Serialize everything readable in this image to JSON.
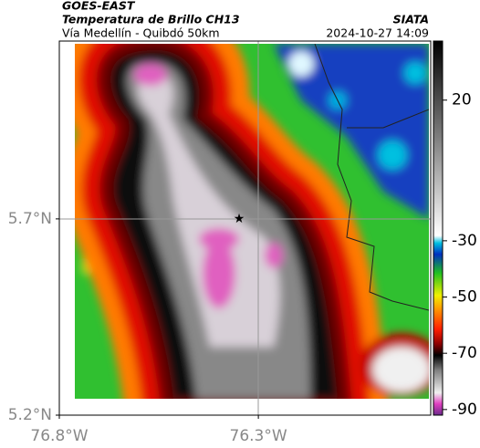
{
  "header": {
    "title": "GOES-EAST",
    "subtitle": "Temperatura de Brillo CH13",
    "route": "Vía Medellín - Quibdó 50km",
    "source": "SIATA",
    "datetime": "2024-10-27 14:09"
  },
  "map": {
    "xlim": [
      -76.8,
      -75.867
    ],
    "ylim": [
      5.2,
      6.153
    ],
    "xticks": [
      {
        "value": -76.8,
        "label": "76.8°W"
      },
      {
        "value": -76.3,
        "label": "76.3°W"
      }
    ],
    "yticks": [
      {
        "value": 5.2,
        "label": "5.2°N"
      },
      {
        "value": 5.7,
        "label": "5.7°N"
      }
    ]
  },
  "colorbar": {
    "lim": [
      -92,
      41
    ],
    "ticks": [
      -90,
      -70,
      -50,
      -30,
      20
    ]
  }
}
